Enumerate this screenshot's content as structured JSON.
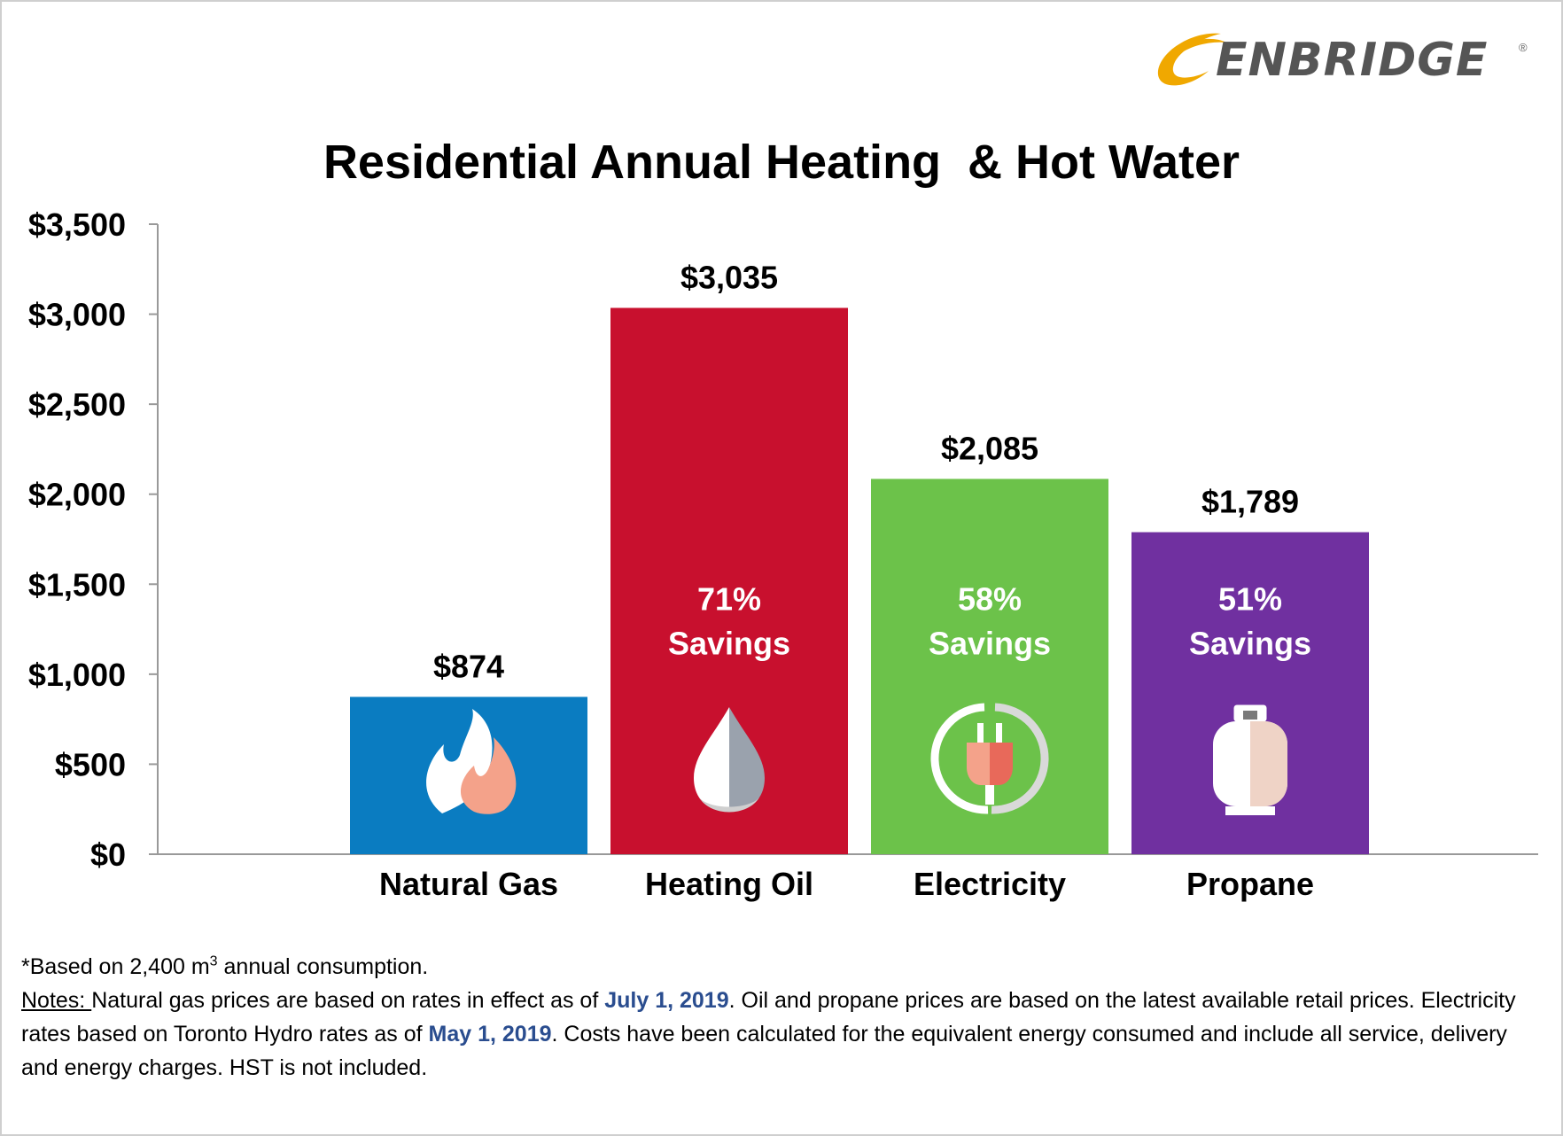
{
  "logo": {
    "text": "ENBRIDGE",
    "reg": "®"
  },
  "chart_data": {
    "type": "bar",
    "title": "Residential Annual Heating  & Hot Water",
    "categories": [
      "Natural Gas",
      "Heating Oil",
      "Electricity",
      "Propane"
    ],
    "values": [
      874,
      3035,
      2085,
      1789
    ],
    "value_labels": [
      "$874",
      "$3,035",
      "$2,085",
      "$1,789"
    ],
    "colors": [
      "#0a7cc1",
      "#c8102e",
      "#6cc24a",
      "#7030a0"
    ],
    "savings": [
      null,
      {
        "percent": "71%",
        "label": "Savings"
      },
      {
        "percent": "58%",
        "label": "Savings"
      },
      {
        "percent": "51%",
        "label": "Savings"
      }
    ],
    "icons": [
      "flame-icon",
      "oil-drop-icon",
      "plug-icon",
      "propane-tank-icon"
    ],
    "y_ticks": [
      0,
      500,
      1000,
      1500,
      2000,
      2500,
      3000,
      3500
    ],
    "y_tick_labels": [
      "$0",
      "$500",
      "$1,000",
      "$1,500",
      "$2,000",
      "$2,500",
      "$3,000",
      "$3,500"
    ],
    "ylim": [
      0,
      3500
    ],
    "xlabel": "",
    "ylabel": "",
    "grid": false
  },
  "footnote": {
    "prefix": "*Based on 2,400 m",
    "sup": "3",
    "suffix": " annual consumption."
  },
  "notes": {
    "label": "Notes: ",
    "part1": "Natural gas prices are based on rates in effect as of  ",
    "date1": "July 1, 2019",
    "part2": ".  Oil and propane prices are based on the latest available retail prices.  Electricity rates based on Toronto Hydro rates as of ",
    "date2": "May 1, 2019",
    "part3": ".  Costs have been calculated for the equivalent energy consumed and include all service, delivery and energy charges. HST is not included."
  }
}
